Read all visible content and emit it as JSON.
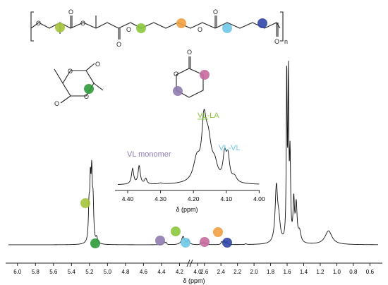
{
  "main": {
    "xlabel": "δ (ppm)",
    "ticks": [
      "6.0",
      "5.8",
      "5.6",
      "5.4",
      "5.2",
      "5.0",
      "4.8",
      "4.6",
      "4.4",
      "4.2",
      "4.0",
      "2.6",
      "2.4",
      "2.2",
      "2.0",
      "1.8",
      "1.6",
      "1.4",
      "1.2",
      "1.0",
      "0.8",
      "0.6"
    ]
  },
  "inset": {
    "xlabel": "δ (ppm)",
    "ticks": [
      "4.40",
      "4.30",
      "4.20",
      "4.10",
      "4.00"
    ],
    "annotations": {
      "vl_monomer": "VL monomer",
      "vl_la": "VL-LA",
      "vl_vl": "VL-VL"
    }
  },
  "structure": {
    "oxygen": "O",
    "n_label": "n"
  },
  "colors": {
    "lime": "#8cc63f",
    "green": "#2e9a3a",
    "orange": "#f0a040",
    "light_blue": "#6ec6e8",
    "blue": "#3146a8",
    "purple": "#8f7bb0",
    "pink": "#c66a9f",
    "olive": "#a4c43c"
  },
  "chart_data": {
    "type": "line",
    "xlabel": "δ (ppm)",
    "x_axis": "reversed, broken between 4.0 and 2.6 ppm",
    "xlim_left": [
      6.1,
      4.0
    ],
    "xlim_right": [
      2.7,
      0.5
    ],
    "peaks": [
      {
        "delta": 5.18,
        "intensity": 0.34,
        "color": "lime"
      },
      {
        "delta": 5.12,
        "intensity": 0.05,
        "color": "green"
      },
      {
        "delta": 4.36,
        "intensity": 0.02,
        "color": "purple"
      },
      {
        "delta": 4.15,
        "intensity": 0.04,
        "color": "lime"
      },
      {
        "delta": 4.1,
        "intensity": 0.02,
        "color": "light_blue"
      },
      {
        "delta": 2.62,
        "intensity": 0.02,
        "color": "pink"
      },
      {
        "delta": 2.36,
        "intensity": 0.03,
        "color": "orange"
      },
      {
        "delta": 2.3,
        "intensity": 0.02,
        "color": "blue"
      },
      {
        "delta": 1.73,
        "intensity": 0.35
      },
      {
        "delta": 1.59,
        "intensity": 1.0
      },
      {
        "delta": 1.56,
        "intensity": 0.95
      },
      {
        "delta": 1.5,
        "intensity": 0.22
      },
      {
        "delta": 1.1,
        "intensity": 0.08
      }
    ],
    "inset": {
      "xlim": [
        4.43,
        4.0
      ],
      "ticks": [
        4.4,
        4.3,
        4.2,
        4.1,
        4.0
      ],
      "peaks": [
        {
          "delta": 4.38,
          "intensity": 0.22,
          "label": "VL monomer"
        },
        {
          "delta": 4.36,
          "intensity": 0.25,
          "label": "VL monomer"
        },
        {
          "delta": 4.17,
          "intensity": 0.8,
          "label": "VL-LA"
        },
        {
          "delta": 4.1,
          "intensity": 0.42,
          "label": "VL-VL"
        }
      ]
    }
  }
}
